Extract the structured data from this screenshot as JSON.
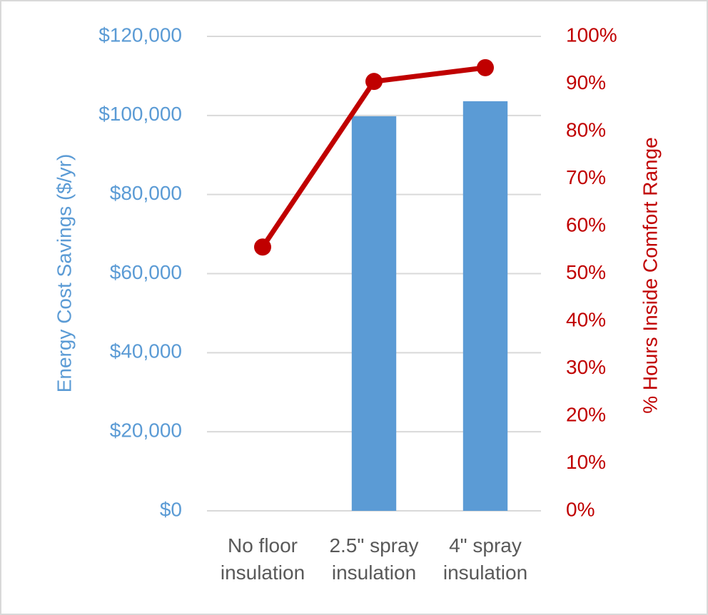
{
  "chart_data": {
    "type": "combo",
    "categories": [
      "No floor insulation",
      "2.5\" spray insulation",
      "4\" spray insulation"
    ],
    "y_label": "Energy Cost Savings ($/yr)",
    "y2_label": "% Hours Inside Comfort Range",
    "series": [
      {
        "name": "Energy Cost Savings",
        "type": "bar",
        "axis": "y",
        "color": "#5b9bd5",
        "values": [
          0,
          99800,
          103600
        ]
      },
      {
        "name": "% Hours Inside Comfort Range",
        "type": "line",
        "axis": "y2",
        "color": "#c00000",
        "values": [
          55.6,
          90.5,
          93.4
        ]
      }
    ],
    "ylim": [
      0,
      120000
    ],
    "yticks": [
      {
        "value": 0,
        "label": "$0"
      },
      {
        "value": 20000,
        "label": "$20,000"
      },
      {
        "value": 40000,
        "label": "$40,000"
      },
      {
        "value": 60000,
        "label": "$60,000"
      },
      {
        "value": 80000,
        "label": "$80,000"
      },
      {
        "value": 100000,
        "label": "$100,000"
      },
      {
        "value": 120000,
        "label": "$120,000"
      }
    ],
    "y2lim": [
      0,
      100
    ],
    "y2ticks": [
      {
        "value": 0,
        "label": "0%"
      },
      {
        "value": 10,
        "label": "10%"
      },
      {
        "value": 20,
        "label": "20%"
      },
      {
        "value": 30,
        "label": "30%"
      },
      {
        "value": 40,
        "label": "40%"
      },
      {
        "value": 50,
        "label": "50%"
      },
      {
        "value": 60,
        "label": "60%"
      },
      {
        "value": 70,
        "label": "70%"
      },
      {
        "value": 80,
        "label": "80%"
      },
      {
        "value": 90,
        "label": "90%"
      },
      {
        "value": 100,
        "label": "100%"
      }
    ],
    "grid": true
  }
}
